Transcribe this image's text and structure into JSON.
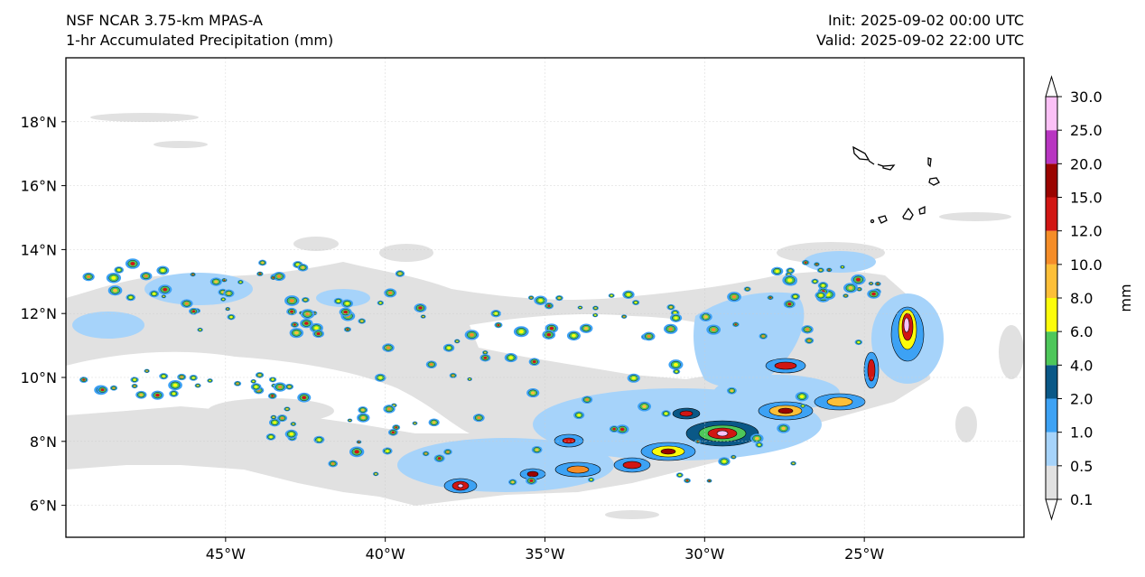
{
  "header": {
    "model": "NSF NCAR 3.75-km MPAS-A",
    "field": "1-hr Accumulated Precipitation (mm)",
    "init": "Init: 2025-09-02 00:00 UTC",
    "valid": "Valid: 2025-09-02 22:00 UTC"
  },
  "map": {
    "lon_range": [
      -50,
      -20
    ],
    "lat_range": [
      5,
      20
    ],
    "lon_ticks": [
      {
        "value": -45,
        "label": "45°W"
      },
      {
        "value": -40,
        "label": "40°W"
      },
      {
        "value": -35,
        "label": "35°W"
      },
      {
        "value": -30,
        "label": "30°W"
      },
      {
        "value": -25,
        "label": "25°W"
      }
    ],
    "lat_ticks": [
      {
        "value": 6,
        "label": "6°N"
      },
      {
        "value": 8,
        "label": "8°N"
      },
      {
        "value": 10,
        "label": "10°N"
      },
      {
        "value": 12,
        "label": "12°N"
      },
      {
        "value": 14,
        "label": "14°N"
      },
      {
        "value": 16,
        "label": "16°N"
      },
      {
        "value": 18,
        "label": "18°N"
      }
    ],
    "colorbar": {
      "unit_label": "mm",
      "levels": [
        "0.1",
        "0.5",
        "1.0",
        "2.0",
        "4.0",
        "6.0",
        "8.0",
        "10.0",
        "12.0",
        "15.0",
        "20.0",
        "25.0",
        "30.0"
      ],
      "colors": [
        "#e1e1e1",
        "#a6d3fa",
        "#3da2f4",
        "#0a5887",
        "#4ec75a",
        "#fcfc0b",
        "#fdbf38",
        "#f58d28",
        "#d11613",
        "#9a0400",
        "#b836c1",
        "#fbc1f6"
      ]
    }
  }
}
